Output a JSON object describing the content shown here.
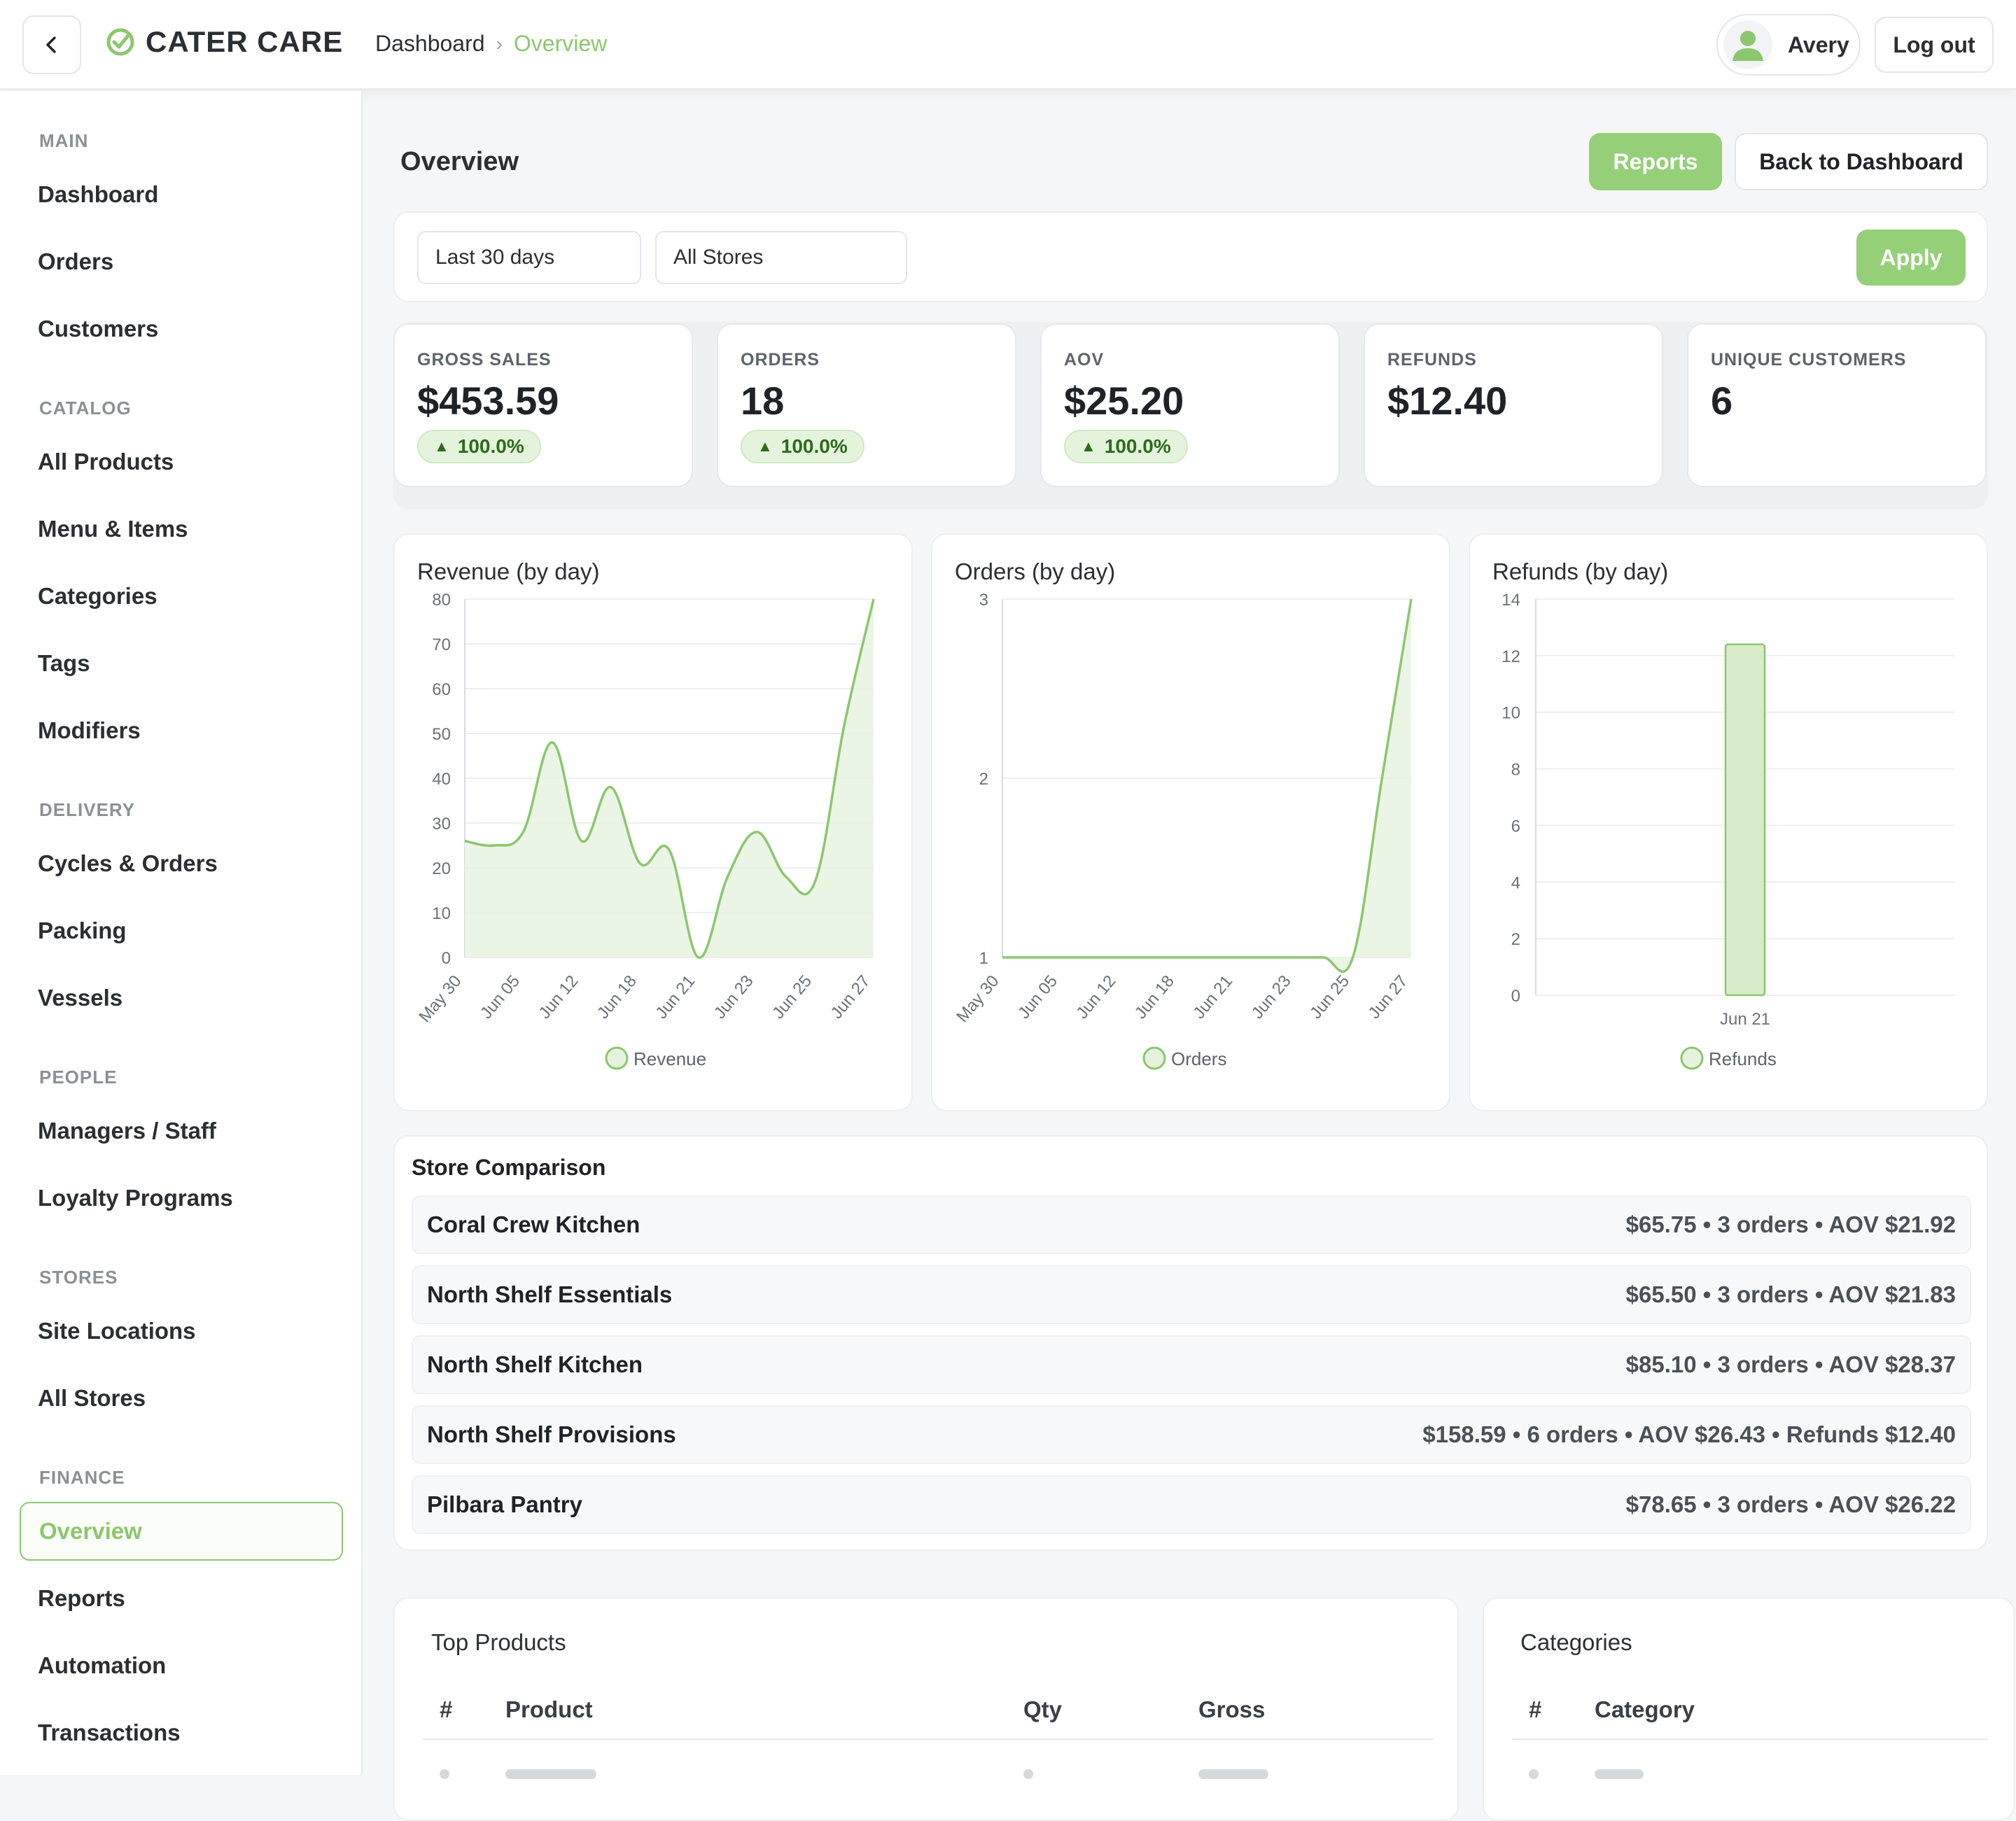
{
  "header": {
    "brand": "CATER CARE",
    "breadcrumb": [
      "Dashboard",
      "Overview"
    ],
    "user_name": "Avery",
    "logout_label": "Log out"
  },
  "sidebar": {
    "sections": [
      {
        "label": "MAIN",
        "items": [
          "Dashboard",
          "Orders",
          "Customers"
        ]
      },
      {
        "label": "CATALOG",
        "items": [
          "All Products",
          "Menu & Items",
          "Categories",
          "Tags",
          "Modifiers"
        ]
      },
      {
        "label": "DELIVERY",
        "items": [
          "Cycles & Orders",
          "Packing",
          "Vessels"
        ]
      },
      {
        "label": "PEOPLE",
        "items": [
          "Managers / Staff",
          "Loyalty Programs"
        ]
      },
      {
        "label": "STORES",
        "items": [
          "Site Locations",
          "All Stores"
        ]
      },
      {
        "label": "FINANCE",
        "items": [
          "Overview",
          "Reports",
          "Automation",
          "Transactions"
        ]
      }
    ],
    "active_item": "Overview"
  },
  "page": {
    "title": "Overview",
    "reports_label": "Reports",
    "back_label": "Back to Dashboard"
  },
  "filters": {
    "range": "Last 30 days",
    "store": "All Stores",
    "apply_label": "Apply"
  },
  "kpis": [
    {
      "label": "GROSS SALES",
      "value": "$453.59",
      "badge": "100.0%"
    },
    {
      "label": "ORDERS",
      "value": "18",
      "badge": "100.0%"
    },
    {
      "label": "AOV",
      "value": "$25.20",
      "badge": "100.0%"
    },
    {
      "label": "REFUNDS",
      "value": "$12.40",
      "badge": ""
    },
    {
      "label": "UNIQUE CUSTOMERS",
      "value": "6",
      "badge": ""
    }
  ],
  "colors": {
    "accent": "#8cc66e",
    "accent_fill": "#e6f2de",
    "badge_bg": "#e4f4dc",
    "badge_text": "#2e6b1b"
  },
  "chart_data": [
    {
      "type": "area",
      "title": "Revenue (by day)",
      "legend": "Revenue",
      "ylim": [
        0,
        80
      ],
      "yticks": [
        0,
        10,
        20,
        30,
        40,
        50,
        60,
        70,
        80
      ],
      "xticks": [
        "May 30",
        "Jun 05",
        "Jun 12",
        "Jun 18",
        "Jun 21",
        "Jun 23",
        "Jun 25",
        "Jun 27"
      ],
      "x": [
        0,
        1,
        2,
        3,
        4,
        5,
        6,
        7,
        8,
        9,
        10,
        11,
        12,
        13,
        14
      ],
      "values": [
        26,
        25,
        28,
        48,
        26,
        38,
        21,
        24,
        0,
        18,
        28,
        18,
        17,
        52,
        80
      ],
      "grid": true,
      "legend_position": "bottom"
    },
    {
      "type": "area",
      "title": "Orders (by day)",
      "legend": "Orders",
      "ylim": [
        1,
        3
      ],
      "yticks": [
        1,
        2,
        3
      ],
      "xticks": [
        "May 30",
        "Jun 05",
        "Jun 12",
        "Jun 18",
        "Jun 21",
        "Jun 23",
        "Jun 25",
        "Jun 27"
      ],
      "x": [
        0,
        1,
        2,
        3,
        4,
        5,
        6,
        7,
        8,
        9,
        10,
        11,
        12,
        13,
        14
      ],
      "values": [
        1,
        1,
        1,
        1,
        1,
        1,
        1,
        1,
        1,
        1,
        1,
        1,
        1,
        2,
        3
      ],
      "grid": true,
      "legend_position": "bottom"
    },
    {
      "type": "bar",
      "title": "Refunds (by day)",
      "legend": "Refunds",
      "ylim": [
        0,
        14
      ],
      "yticks": [
        0,
        2,
        4,
        6,
        8,
        10,
        12,
        14
      ],
      "categories": [
        "Jun 21"
      ],
      "values": [
        12.4
      ],
      "grid": true,
      "legend_position": "bottom"
    }
  ],
  "store_comparison": {
    "title": "Store Comparison",
    "rows": [
      {
        "name": "Coral Crew Kitchen",
        "stats": "$65.75 • 3 orders • AOV $21.92"
      },
      {
        "name": "North Shelf Essentials",
        "stats": "$65.50 • 3 orders • AOV $21.83"
      },
      {
        "name": "North Shelf Kitchen",
        "stats": "$85.10 • 3 orders • AOV $28.37"
      },
      {
        "name": "North Shelf Provisions",
        "stats": "$158.59 • 6 orders • AOV $26.43 • Refunds $12.40"
      },
      {
        "name": "Pilbara Pantry",
        "stats": "$78.65 • 3 orders • AOV $26.22"
      }
    ]
  },
  "top_products": {
    "title": "Top Products",
    "columns": [
      "#",
      "Product",
      "Qty",
      "Gross"
    ]
  },
  "categories_table": {
    "title": "Categories",
    "columns": [
      "#",
      "Category"
    ]
  }
}
